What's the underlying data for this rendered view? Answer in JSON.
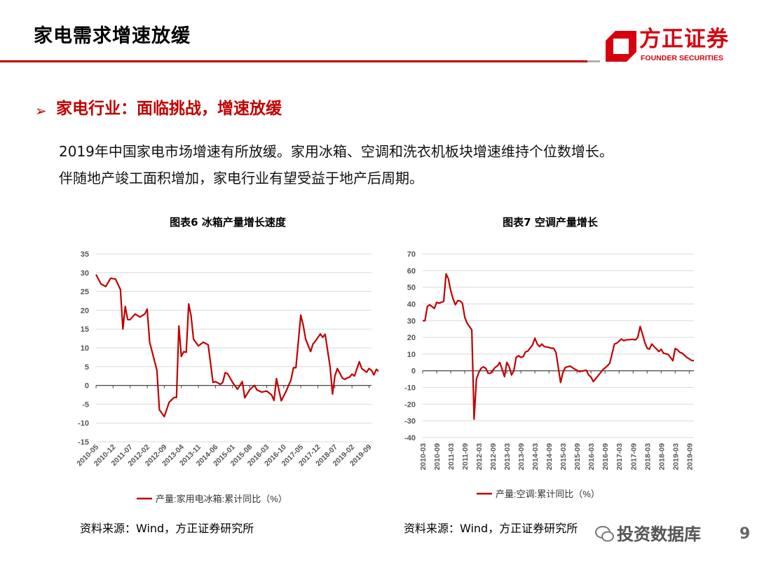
{
  "header": {
    "title": "家电需求增速放缓"
  },
  "logo": {
    "name_cn": "方正证券",
    "name_en": "FOUNDER SECURITIES",
    "color": "#d7000f"
  },
  "section": {
    "bullet": "➢",
    "heading": "家电行业：面临挑战，增速放缓",
    "body": [
      "2019年中国家电市场增速有所放缓。家用冰箱、空调和洗衣机板块增速维持个位数增长。",
      "伴随地产竣工面积增加，家电行业有望受益于地产后周期。"
    ]
  },
  "sources": [
    "资料来源：Wind，方正证券研究所",
    "资料来源：Wind，方正证券研究所"
  ],
  "watermark": "投资数据库",
  "page_number": "9",
  "chart_data": [
    {
      "type": "line",
      "title": "图表6 冰箱产量增长速度",
      "line_color": "#c00000",
      "ylim": [
        -15,
        35
      ],
      "yticks": [
        35,
        30,
        25,
        20,
        15,
        10,
        5,
        0,
        -5,
        -10,
        -15
      ],
      "xticks": [
        "2010-05",
        "2010-12",
        "2011-07",
        "2012-02",
        "2012-09",
        "2013-04",
        "2013-11",
        "2014-06",
        "2015-01",
        "2015-08",
        "2016-03",
        "2016-10",
        "2017-05",
        "2017-12",
        "2018-07",
        "2019-02",
        "2019-09"
      ],
      "grid": true,
      "legend_position": "bottom",
      "series": [
        {
          "name": "产量:家用电冰箱:累计同比（%）",
          "points": [
            [
              "2010-05",
              29.5
            ],
            [
              "2010-07",
              27
            ],
            [
              "2010-09",
              26.3
            ],
            [
              "2010-11",
              28.5
            ],
            [
              "2011-01",
              28.3
            ],
            [
              "2011-03",
              25.5
            ],
            [
              "2011-04",
              15
            ],
            [
              "2011-05",
              21
            ],
            [
              "2011-06",
              17.5
            ],
            [
              "2011-07",
              17.5
            ],
            [
              "2011-09",
              19
            ],
            [
              "2011-11",
              18.2
            ],
            [
              "2012-01",
              19
            ],
            [
              "2012-02",
              20.3
            ],
            [
              "2012-03",
              11.5
            ],
            [
              "2012-04",
              9
            ],
            [
              "2012-06",
              4
            ],
            [
              "2012-07",
              -6.5
            ],
            [
              "2012-09",
              -8.3
            ],
            [
              "2012-11",
              -4.5
            ],
            [
              "2013-01",
              -3.2
            ],
            [
              "2013-02",
              -3.2
            ],
            [
              "2013-03",
              15.8
            ],
            [
              "2013-04",
              7.7
            ],
            [
              "2013-05",
              9
            ],
            [
              "2013-06",
              8.8
            ],
            [
              "2013-07",
              21.7
            ],
            [
              "2013-08",
              18.5
            ],
            [
              "2013-09",
              12.3
            ],
            [
              "2013-11",
              10.5
            ],
            [
              "2014-01",
              11.5
            ],
            [
              "2014-03",
              10.8
            ],
            [
              "2014-05",
              0.8
            ],
            [
              "2014-06",
              1
            ],
            [
              "2014-08",
              0.3
            ],
            [
              "2014-09",
              0.8
            ],
            [
              "2014-10",
              3.4
            ],
            [
              "2014-11",
              3.1
            ],
            [
              "2015-01",
              0.8
            ],
            [
              "2015-03",
              -1
            ],
            [
              "2015-05",
              1
            ],
            [
              "2015-06",
              -3.3
            ],
            [
              "2015-08",
              -1.2
            ],
            [
              "2015-10",
              0
            ],
            [
              "2015-11",
              -1.2
            ],
            [
              "2016-01",
              -1.8
            ],
            [
              "2016-03",
              -1.5
            ],
            [
              "2016-05",
              -2.5
            ],
            [
              "2016-06",
              -4
            ],
            [
              "2016-07",
              1.8
            ],
            [
              "2016-09",
              -4.1
            ],
            [
              "2016-11",
              -1.5
            ],
            [
              "2017-01",
              1.5
            ],
            [
              "2017-02",
              4.7
            ],
            [
              "2017-03",
              4.7
            ],
            [
              "2017-05",
              18.7
            ],
            [
              "2017-06",
              16
            ],
            [
              "2017-07",
              12.3
            ],
            [
              "2017-09",
              9
            ],
            [
              "2017-10",
              11
            ],
            [
              "2017-11",
              11.8
            ],
            [
              "2018-01",
              13.7
            ],
            [
              "2018-02",
              12.8
            ],
            [
              "2018-03",
              13.6
            ],
            [
              "2018-05",
              5
            ],
            [
              "2018-06",
              -2.3
            ],
            [
              "2018-07",
              2.5
            ],
            [
              "2018-08",
              4.5
            ],
            [
              "2018-10",
              2
            ],
            [
              "2018-11",
              1.6
            ],
            [
              "2018-12",
              2
            ],
            [
              "2019-01",
              2.2
            ],
            [
              "2019-02",
              3
            ],
            [
              "2019-03",
              2.5
            ],
            [
              "2019-05",
              6.3
            ],
            [
              "2019-06",
              4.5
            ],
            [
              "2019-08",
              3.5
            ],
            [
              "2019-09",
              4.5
            ],
            [
              "2019-10",
              4
            ],
            [
              "2019-11",
              2.8
            ],
            [
              "2019-12",
              4.3
            ],
            [
              "2020-01",
              3.7
            ]
          ]
        }
      ]
    },
    {
      "type": "line",
      "title": "图表7 空调产量增长",
      "line_color": "#c00000",
      "ylim": [
        -40,
        70
      ],
      "yticks": [
        70,
        60,
        50,
        40,
        30,
        20,
        10,
        0,
        -10,
        -20,
        -30,
        -40
      ],
      "xticks": [
        "2010-03",
        "2010-09",
        "2011-03",
        "2011-09",
        "2012-03",
        "2012-09",
        "2013-03",
        "2013-09",
        "2014-03",
        "2014-09",
        "2015-03",
        "2015-09",
        "2016-03",
        "2016-09",
        "2017-03",
        "2017-09",
        "2018-03",
        "2018-09",
        "2019-03",
        "2019-09"
      ],
      "grid": true,
      "legend_position": "bottom",
      "series": [
        {
          "name": "产量:空调:累计同比（%）",
          "points": [
            [
              "2010-03",
              30
            ],
            [
              "2010-04",
              30
            ],
            [
              "2010-05",
              38.5
            ],
            [
              "2010-06",
              39.5
            ],
            [
              "2010-08",
              37.3
            ],
            [
              "2010-09",
              41
            ],
            [
              "2010-10",
              40.5
            ],
            [
              "2010-12",
              41.5
            ],
            [
              "2011-01",
              58
            ],
            [
              "2011-02",
              55
            ],
            [
              "2011-03",
              48
            ],
            [
              "2011-04",
              43
            ],
            [
              "2011-05",
              39.5
            ],
            [
              "2011-06",
              42
            ],
            [
              "2011-07",
              41.8
            ],
            [
              "2011-08",
              40.5
            ],
            [
              "2011-09",
              32
            ],
            [
              "2011-10",
              28.5
            ],
            [
              "2011-12",
              24.5
            ],
            [
              "2012-01",
              -29
            ],
            [
              "2012-02",
              -5
            ],
            [
              "2012-03",
              -1
            ],
            [
              "2012-04",
              1.5
            ],
            [
              "2012-05",
              2.3
            ],
            [
              "2012-06",
              1.5
            ],
            [
              "2012-07",
              -1.5
            ],
            [
              "2012-08",
              -1.5
            ],
            [
              "2012-10",
              2
            ],
            [
              "2012-11",
              3
            ],
            [
              "2012-12",
              5
            ],
            [
              "2013-02",
              -3.5
            ],
            [
              "2013-03",
              5
            ],
            [
              "2013-04",
              2.5
            ],
            [
              "2013-05",
              -2.5
            ],
            [
              "2013-06",
              0
            ],
            [
              "2013-07",
              8
            ],
            [
              "2013-08",
              9
            ],
            [
              "2013-09",
              8
            ],
            [
              "2013-10",
              8.5
            ],
            [
              "2013-11",
              11.3
            ],
            [
              "2013-12",
              11.8
            ],
            [
              "2014-02",
              15.5
            ],
            [
              "2014-03",
              19.5
            ],
            [
              "2014-04",
              16
            ],
            [
              "2014-05",
              14.5
            ],
            [
              "2014-06",
              16
            ],
            [
              "2014-07",
              14.5
            ],
            [
              "2014-09",
              14
            ],
            [
              "2014-10",
              13.5
            ],
            [
              "2014-11",
              13.5
            ],
            [
              "2014-12",
              11
            ],
            [
              "2015-02",
              -7
            ],
            [
              "2015-03",
              -1
            ],
            [
              "2015-04",
              2
            ],
            [
              "2015-06",
              2.8
            ],
            [
              "2015-08",
              1
            ],
            [
              "2015-10",
              -0.5
            ],
            [
              "2016-01",
              0.3
            ],
            [
              "2016-02",
              -2.5
            ],
            [
              "2016-03",
              -3.8
            ],
            [
              "2016-04",
              -6.5
            ],
            [
              "2016-06",
              -3
            ],
            [
              "2016-08",
              0.5
            ],
            [
              "2016-10",
              3
            ],
            [
              "2016-11",
              4.5
            ],
            [
              "2017-01",
              16
            ],
            [
              "2017-02",
              16.5
            ],
            [
              "2017-04",
              19
            ],
            [
              "2017-05",
              18
            ],
            [
              "2017-06",
              18.5
            ],
            [
              "2017-09",
              18.8
            ],
            [
              "2017-10",
              18.5
            ],
            [
              "2017-11",
              20
            ],
            [
              "2017-12",
              26.5
            ],
            [
              "2018-01",
              22
            ],
            [
              "2018-02",
              17
            ],
            [
              "2018-03",
              13.5
            ],
            [
              "2018-04",
              13
            ],
            [
              "2018-05",
              16
            ],
            [
              "2018-06",
              14.5
            ],
            [
              "2018-08",
              11.5
            ],
            [
              "2018-09",
              12.8
            ],
            [
              "2018-10",
              10.5
            ],
            [
              "2018-12",
              9.8
            ],
            [
              "2019-02",
              6
            ],
            [
              "2019-03",
              13.3
            ],
            [
              "2019-04",
              12.5
            ],
            [
              "2019-05",
              11
            ],
            [
              "2019-06",
              10.5
            ],
            [
              "2019-08",
              8
            ],
            [
              "2019-10",
              6.2
            ],
            [
              "2019-11",
              6
            ]
          ]
        }
      ]
    }
  ]
}
